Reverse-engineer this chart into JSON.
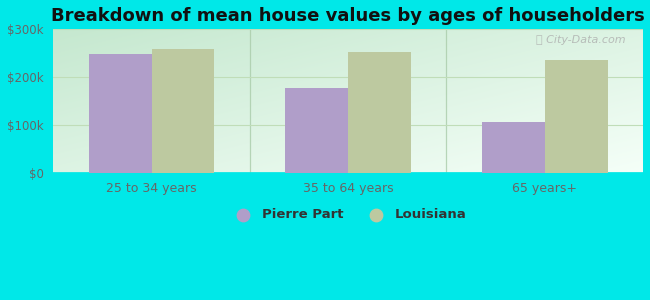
{
  "title": "Breakdown of mean house values by ages of householders",
  "categories": [
    "25 to 34 years",
    "35 to 64 years",
    "65 years+"
  ],
  "pierre_part": [
    248000,
    178000,
    105000
  ],
  "louisiana": [
    258000,
    253000,
    235000
  ],
  "pierre_part_color": "#b09ec9",
  "louisiana_color": "#bdc9a0",
  "bar_width": 0.32,
  "ylim": [
    0,
    300000
  ],
  "yticks": [
    0,
    100000,
    200000,
    300000
  ],
  "ytick_labels": [
    "$0",
    "$100k",
    "$200k",
    "$300k"
  ],
  "bg_color": "#00e8e8",
  "title_fontsize": 13,
  "legend_labels": [
    "Pierre Part",
    "Louisiana"
  ],
  "grid_color": "#c0ddb8",
  "watermark_text": "Ⓢ City-Data.com",
  "plot_bg_left": "#b8e8d0",
  "plot_bg_right": "#f0fff8"
}
